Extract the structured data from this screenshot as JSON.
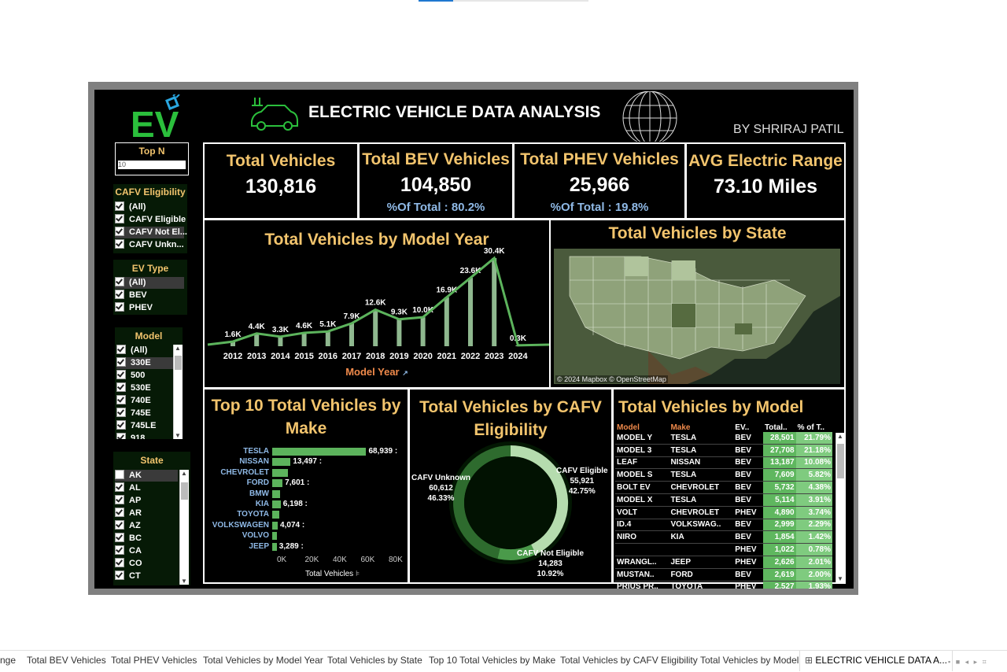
{
  "header": {
    "title": "ELECTRIC VEHICLE DATA ANALYSIS",
    "author": "BY SHRIRAJ PATIL",
    "logo_text": "EV"
  },
  "filters": {
    "topn": {
      "title": "Top N",
      "value": "10"
    },
    "cafv": {
      "title": "CAFV Eligibility",
      "items": [
        "(All)",
        "CAFV Eligible",
        "CAFV Not El...",
        "CAFV Unkn..."
      ]
    },
    "evtype": {
      "title": "EV Type",
      "items": [
        "(All)",
        "BEV",
        "PHEV"
      ]
    },
    "model": {
      "title": "Model",
      "items": [
        "(All)",
        "330E",
        "500",
        "530E",
        "740E",
        "745E",
        "745LE",
        "918"
      ]
    },
    "state": {
      "title": "State",
      "items": [
        "AK",
        "AL",
        "AP",
        "AR",
        "AZ",
        "BC",
        "CA",
        "CO",
        "CT"
      ]
    }
  },
  "kpis": {
    "total": {
      "title": "Total Vehicles",
      "value": "130,816"
    },
    "bev": {
      "title": "Total BEV Vehicles",
      "value": "104,850",
      "sub": "%Of Total : 80.2%"
    },
    "phev": {
      "title": "Total PHEV Vehicles",
      "value": "25,966",
      "sub": "%Of Total : 19.8%"
    },
    "range": {
      "title": "AVG Electric Range",
      "value": "73.10 Miles"
    }
  },
  "model_year": {
    "title": "Total Vehicles by Model Year",
    "xlabel": "Model Year"
  },
  "state_map": {
    "title": "Total Vehicles by State",
    "credit": "© 2024 Mapbox © OpenStreetMap"
  },
  "make": {
    "title_line1": "Top 10 Total Vehicles by",
    "title_line2": "Make",
    "xlabel": "Total Vehicles"
  },
  "cafv": {
    "title_line1": "Total Vehicles by CAFV",
    "title_line2": "Eligibility",
    "labels": {
      "unknown": {
        "name": "CAFV Unknown",
        "value": "60,612",
        "pct": "46.33%"
      },
      "eligible": {
        "name": "CAFV Eligible",
        "value": "55,921",
        "pct": "42.75%"
      },
      "not": {
        "name": "CAFV Not Eligible",
        "value": "14,283",
        "pct": "10.92%"
      }
    }
  },
  "model_table": {
    "title": "Total Vehicles by Model",
    "headers": [
      "Model",
      "Make",
      "EV..",
      "Total..",
      "% of T.."
    ],
    "rows": [
      [
        "MODEL Y",
        "TESLA",
        "BEV",
        "28,501",
        "21.79%"
      ],
      [
        "MODEL 3",
        "TESLA",
        "BEV",
        "27,708",
        "21.18%"
      ],
      [
        "LEAF",
        "NISSAN",
        "BEV",
        "13,187",
        "10.08%"
      ],
      [
        "MODEL S",
        "TESLA",
        "BEV",
        "7,609",
        "5.82%"
      ],
      [
        "BOLT EV",
        "CHEVROLET",
        "BEV",
        "5,732",
        "4.38%"
      ],
      [
        "MODEL X",
        "TESLA",
        "BEV",
        "5,114",
        "3.91%"
      ],
      [
        "VOLT",
        "CHEVROLET",
        "PHEV",
        "4,890",
        "3.74%"
      ],
      [
        "ID.4",
        "VOLKSWAG..",
        "BEV",
        "2,999",
        "2.29%"
      ],
      [
        "NIRO",
        "KIA",
        "BEV",
        "1,854",
        "1.42%"
      ],
      [
        "",
        "",
        "PHEV",
        "1,022",
        "0.78%"
      ],
      [
        "WRANGL..",
        "JEEP",
        "PHEV",
        "2,626",
        "2.01%"
      ],
      [
        "MUSTAN..",
        "FORD",
        "BEV",
        "2,619",
        "2.00%"
      ],
      [
        "PRIUS PR..",
        "TOYOTA",
        "PHEV",
        "2,527",
        "1.93%"
      ]
    ]
  },
  "tabs": [
    "nge",
    "Total BEV Vehicles",
    "Total PHEV Vehicles",
    "Total Vehicles by Model Year",
    "Total Vehicles by State",
    "Top 10 Total Vehicles by Make",
    "Total Vehicles by CAFV Eligibility",
    "Total Vehicles by Model",
    "ELECTRIC VEHICLE DATA A..."
  ],
  "chart_data": [
    {
      "type": "line",
      "title": "Total Vehicles by Model Year",
      "xlabel": "Model Year",
      "ylabel": "",
      "x": [
        "2012",
        "2013",
        "2014",
        "2015",
        "2016",
        "2017",
        "2018",
        "2019",
        "2020",
        "2021",
        "2022",
        "2023",
        "2024"
      ],
      "values": [
        1600,
        4400,
        3300,
        4600,
        5100,
        7900,
        12600,
        9300,
        10000,
        16900,
        23600,
        30400,
        300
      ],
      "labels": [
        "1.6K",
        "4.4K",
        "3.3K",
        "4.6K",
        "5.1K",
        "7.9K",
        "12.6K",
        "9.3K",
        "10.0K",
        "16.9K",
        "23.6K",
        "30.4K",
        "0.3K"
      ]
    },
    {
      "type": "bar",
      "title": "Top 10 Total Vehicles by Make",
      "xlabel": "Total Vehicles",
      "orientation": "horizontal",
      "categories": [
        "TESLA",
        "NISSAN",
        "CHEVROLET",
        "FORD",
        "BMW",
        "KIA",
        "TOYOTA",
        "VOLKSWAGEN",
        "VOLVO",
        "JEEP"
      ],
      "values": [
        68939,
        13497,
        11800,
        7601,
        5800,
        6198,
        5000,
        4074,
        3500,
        3289
      ],
      "value_labels": [
        "68,939",
        "13,497",
        "",
        "7,601",
        "",
        "6,198",
        "",
        "4,074",
        "",
        "3,289"
      ],
      "xticks": [
        "0K",
        "20K",
        "40K",
        "60K",
        "80K"
      ],
      "xlim": [
        0,
        90000
      ]
    },
    {
      "type": "pie",
      "title": "Total Vehicles by CAFV Eligibility",
      "categories": [
        "CAFV Eligible",
        "CAFV Not Eligible",
        "CAFV Unknown"
      ],
      "values": [
        55921,
        14283,
        60612
      ],
      "pct": [
        42.75,
        10.92,
        46.33
      ]
    }
  ]
}
